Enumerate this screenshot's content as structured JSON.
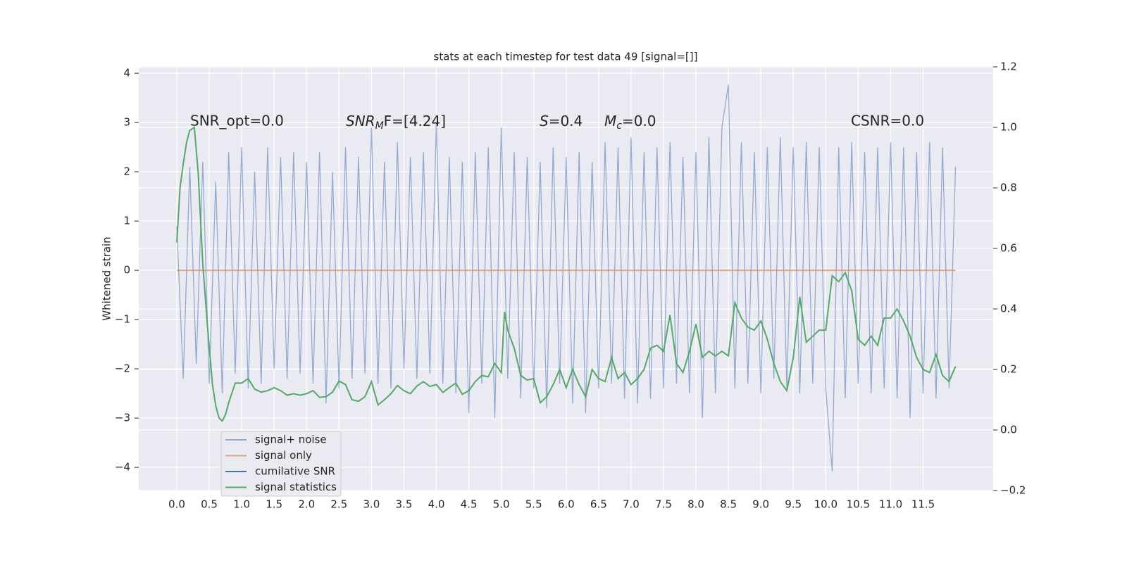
{
  "chart_data": {
    "type": "line",
    "title": "stats at each timestep for test data 49 [signal=[]]",
    "ylabel": "Whitened strain",
    "annotations": [
      {
        "text": "SNR_opt=0.0"
      },
      {
        "base": "SNR",
        "sub": "M",
        "tail": "F=[4.24]"
      },
      {
        "base": "S",
        "tail": "=0.4"
      },
      {
        "base": "M",
        "sub": "c",
        "tail": "=0.0"
      },
      {
        "text": "CSNR=0.0"
      }
    ],
    "xlim": [
      -0.586,
      12.58
    ],
    "ylim": [
      -4.47,
      4.13
    ],
    "y2lim": [
      -0.2,
      1.2
    ],
    "xticks": [
      {
        "value": 0,
        "label": "0.0"
      },
      0.5,
      {
        "value": 1,
        "label": "1.0"
      },
      1.5,
      {
        "value": 2,
        "label": "2.0"
      },
      2.5,
      {
        "value": 3,
        "label": "3.0"
      },
      3.5,
      {
        "value": 4,
        "label": "4.0"
      },
      4.5,
      {
        "value": 5,
        "label": "5.0"
      },
      5.5,
      {
        "value": 6,
        "label": "6.0"
      },
      6.5,
      {
        "value": 7,
        "label": "7.0"
      },
      7.5,
      {
        "value": 8,
        "label": "8.0"
      },
      8.5,
      {
        "value": 9,
        "label": "9.0"
      },
      9.5,
      {
        "value": 10,
        "label": "10.0"
      },
      10.5,
      {
        "value": 11,
        "label": "11.0"
      },
      11.5
    ],
    "yticks": [
      {
        "value": -4,
        "label": "−4"
      },
      {
        "value": -3,
        "label": "−3"
      },
      {
        "value": -2,
        "label": "−2"
      },
      {
        "value": -1,
        "label": "−1"
      },
      0,
      1,
      2,
      3,
      4
    ],
    "y2ticks": [
      {
        "value": -0.2,
        "label": "−0.2"
      },
      {
        "value": 0,
        "label": "0.0"
      },
      0.2,
      0.4,
      0.6,
      0.8,
      {
        "value": 1,
        "label": "1.0"
      },
      1.2
    ],
    "grid": true,
    "legend": "lower left",
    "series": [
      {
        "name": "signal+ noise",
        "color": "#4c72b0",
        "x": [
          0,
          0.1,
          0.2,
          0.3,
          0.4,
          0.5,
          0.6,
          0.7,
          0.8,
          0.9,
          1,
          1.1,
          1.2,
          1.3,
          1.4,
          1.5,
          1.6,
          1.7,
          1.8,
          1.9,
          2,
          2.1,
          2.2,
          2.3,
          2.4,
          2.5,
          2.6,
          2.7,
          2.8,
          2.9,
          3,
          3.1,
          3.2,
          3.3,
          3.4,
          3.5,
          3.6,
          3.7,
          3.8,
          3.9,
          4,
          4.1,
          4.2,
          4.3,
          4.4,
          4.5,
          4.6,
          4.7,
          4.8,
          4.9,
          5,
          5.1,
          5.2,
          5.3,
          5.4,
          5.5,
          5.6,
          5.7,
          5.8,
          5.9,
          6,
          6.1,
          6.2,
          6.3,
          6.4,
          6.5,
          6.6,
          6.7,
          6.8,
          6.9,
          7,
          7.1,
          7.2,
          7.3,
          7.4,
          7.5,
          7.6,
          7.7,
          7.8,
          7.9,
          8,
          8.1,
          8.2,
          8.3,
          8.4,
          8.5,
          8.6,
          8.7,
          8.8,
          8.9,
          9,
          9.1,
          9.2,
          9.3,
          9.4,
          9.5,
          9.6,
          9.7,
          9.8,
          9.9,
          10,
          10.1,
          10.2,
          10.3,
          10.4,
          10.5,
          10.6,
          10.7,
          10.8,
          10.9,
          11,
          11.1,
          11.2,
          11.3,
          11.4,
          11.5,
          11.6,
          11.7,
          11.8,
          11.9,
          12
        ],
        "values": [
          0.9,
          -2.2,
          2.1,
          -1.9,
          2.2,
          -2.3,
          1.8,
          -2.5,
          2.4,
          -2.1,
          2.5,
          -2.4,
          2.0,
          -2.3,
          2.5,
          -2.0,
          2.3,
          -2.2,
          2.4,
          -2.1,
          2.2,
          -2.3,
          2.4,
          -2.7,
          2.0,
          -2.4,
          2.5,
          -2.2,
          2.3,
          -2.1,
          2.9,
          -2.3,
          2.2,
          -2.4,
          2.6,
          -2.0,
          2.3,
          -2.2,
          2.4,
          -2.1,
          3.0,
          -2.3,
          2.3,
          -2.5,
          2.2,
          -2.9,
          2.4,
          -2.3,
          2.5,
          -3.0,
          2.9,
          -2.2,
          2.4,
          -2.6,
          2.3,
          -2.4,
          2.2,
          -2.8,
          2.5,
          -2.3,
          2.3,
          -2.7,
          2.4,
          -2.9,
          2.2,
          -2.4,
          2.6,
          -2.3,
          2.5,
          -2.6,
          2.7,
          -2.7,
          2.4,
          -2.6,
          2.5,
          -2.4,
          2.6,
          -2.3,
          2.3,
          -2.5,
          2.4,
          -3.0,
          2.7,
          -2.5,
          2.9,
          3.77,
          -2.4,
          2.6,
          -2.3,
          2.4,
          -2.5,
          2.5,
          -2.2,
          2.7,
          -2.4,
          2.5,
          -2.5,
          2.6,
          -2.3,
          2.5,
          -2.4,
          -4.08,
          2.5,
          -2.6,
          2.6,
          -2.3,
          2.4,
          -2.5,
          2.5,
          -2.4,
          2.6,
          -2.6,
          2.5,
          -3.0,
          2.4,
          -2.5,
          2.6,
          -2.6,
          2.5,
          -2.4,
          2.1
        ]
      },
      {
        "name": "signal only",
        "color": "#dd8452",
        "x": [
          0,
          12
        ],
        "values": [
          0,
          0
        ]
      },
      {
        "name": "cumilative SNR",
        "color": "#4c72b0"
      },
      {
        "name": "signal statistics",
        "color": "#55a868",
        "axis": "y2",
        "x": [
          0,
          0.05,
          0.1,
          0.15,
          0.2,
          0.27,
          0.33,
          0.4,
          0.47,
          0.55,
          0.6,
          0.65,
          0.7,
          0.75,
          0.8,
          0.9,
          1,
          1.1,
          1.2,
          1.3,
          1.4,
          1.5,
          1.6,
          1.7,
          1.8,
          1.9,
          2,
          2.1,
          2.2,
          2.3,
          2.4,
          2.5,
          2.6,
          2.7,
          2.8,
          2.9,
          3,
          3.1,
          3.2,
          3.3,
          3.4,
          3.5,
          3.6,
          3.7,
          3.8,
          3.9,
          4,
          4.1,
          4.2,
          4.3,
          4.4,
          4.5,
          4.6,
          4.7,
          4.8,
          4.9,
          5,
          5.05,
          5.1,
          5.2,
          5.3,
          5.4,
          5.5,
          5.6,
          5.7,
          5.8,
          5.9,
          6,
          6.1,
          6.2,
          6.3,
          6.4,
          6.5,
          6.6,
          6.7,
          6.8,
          6.9,
          7,
          7.1,
          7.2,
          7.3,
          7.4,
          7.5,
          7.6,
          7.7,
          7.8,
          7.9,
          8,
          8.1,
          8.2,
          8.3,
          8.4,
          8.5,
          8.6,
          8.7,
          8.8,
          8.9,
          9,
          9.1,
          9.2,
          9.3,
          9.4,
          9.5,
          9.6,
          9.7,
          9.8,
          9.9,
          10,
          10.1,
          10.2,
          10.3,
          10.4,
          10.5,
          10.6,
          10.7,
          10.8,
          10.9,
          11,
          11.1,
          11.2,
          11.3,
          11.4,
          11.5,
          11.6,
          11.7,
          11.8,
          11.9,
          12
        ],
        "values": [
          0.62,
          0.8,
          0.88,
          0.95,
          0.99,
          1.0,
          0.85,
          0.55,
          0.35,
          0.15,
          0.08,
          0.04,
          0.03,
          0.05,
          0.09,
          0.155,
          0.155,
          0.17,
          0.135,
          0.125,
          0.13,
          0.14,
          0.13,
          0.115,
          0.12,
          0.115,
          0.12,
          0.13,
          0.108,
          0.11,
          0.125,
          0.162,
          0.15,
          0.1,
          0.095,
          0.11,
          0.16,
          0.083,
          0.1,
          0.12,
          0.147,
          0.13,
          0.12,
          0.145,
          0.16,
          0.144,
          0.15,
          0.124,
          0.14,
          0.155,
          0.118,
          0.13,
          0.16,
          0.18,
          0.176,
          0.22,
          0.19,
          0.39,
          0.33,
          0.27,
          0.18,
          0.165,
          0.17,
          0.09,
          0.11,
          0.15,
          0.2,
          0.14,
          0.2,
          0.15,
          0.11,
          0.2,
          0.17,
          0.16,
          0.24,
          0.17,
          0.19,
          0.15,
          0.17,
          0.2,
          0.27,
          0.28,
          0.26,
          0.38,
          0.22,
          0.19,
          0.26,
          0.35,
          0.24,
          0.26,
          0.245,
          0.26,
          0.245,
          0.42,
          0.37,
          0.34,
          0.33,
          0.36,
          0.3,
          0.22,
          0.16,
          0.13,
          0.24,
          0.44,
          0.29,
          0.31,
          0.33,
          0.33,
          0.51,
          0.49,
          0.52,
          0.46,
          0.3,
          0.28,
          0.31,
          0.28,
          0.37,
          0.37,
          0.4,
          0.36,
          0.31,
          0.24,
          0.2,
          0.19,
          0.25,
          0.18,
          0.16,
          0.21
        ]
      }
    ]
  }
}
